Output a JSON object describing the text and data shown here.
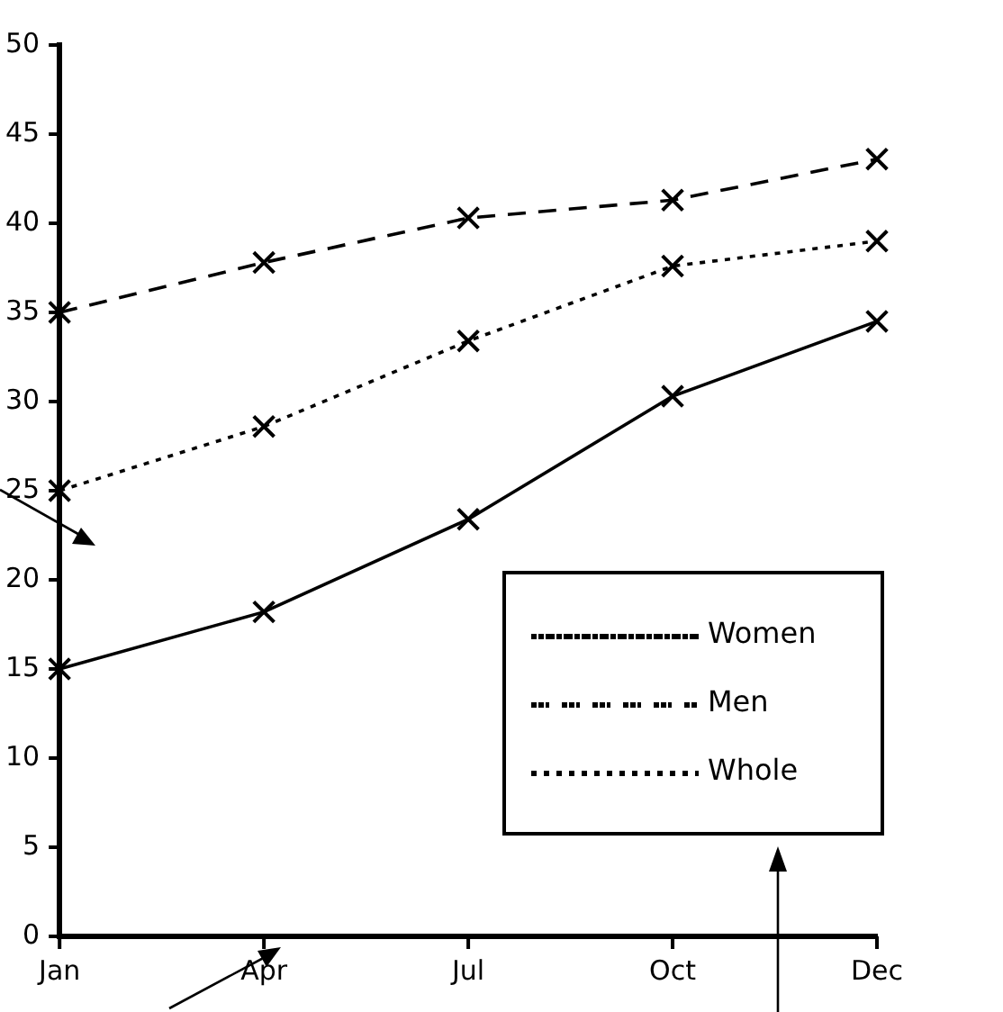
{
  "chart_data": {
    "type": "line",
    "categories": [
      "Jan",
      "Apr",
      "Jul",
      "Oct",
      "Dec"
    ],
    "series": [
      {
        "name": "Women",
        "color": "#000000",
        "line_style": "solid",
        "values": [
          15,
          18.2,
          23.4,
          30.3,
          34.5
        ]
      },
      {
        "name": "Men",
        "color": "#000000",
        "line_style": "dashed",
        "values": [
          35,
          37.8,
          40.3,
          41.3,
          43.6
        ]
      },
      {
        "name": "Whole",
        "color": "#000000",
        "line_style": "dotted",
        "values": [
          25,
          28.6,
          33.4,
          37.6,
          39
        ]
      }
    ],
    "ylim": [
      0,
      50
    ],
    "yticks": [
      0,
      5,
      10,
      15,
      20,
      25,
      30,
      35,
      40,
      45,
      50
    ],
    "grid": false,
    "legend": "bottom right",
    "marker": "cross"
  }
}
